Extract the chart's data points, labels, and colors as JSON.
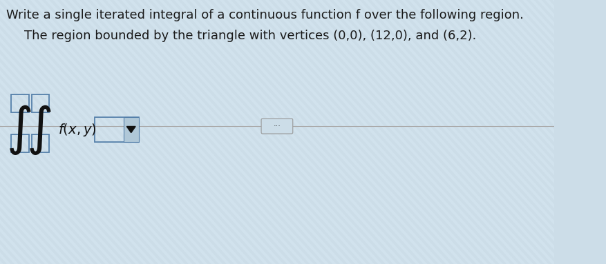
{
  "line1": "Write a single iterated integral of a continuous function f over the following region.",
  "line2": "The region bounded by the triangle with vertices (0,0), (12,0), and (6,2).",
  "bg_color": "#ccdde8",
  "stripe_color1": "#c8dae6",
  "stripe_color2": "#d8e8f2",
  "text_color": "#1a1a1a",
  "divider_color": "#aaaaaa",
  "box_border_color": "#5580aa",
  "integral_color": "#111111",
  "font_size_main": 13,
  "font_size_sub": 13
}
